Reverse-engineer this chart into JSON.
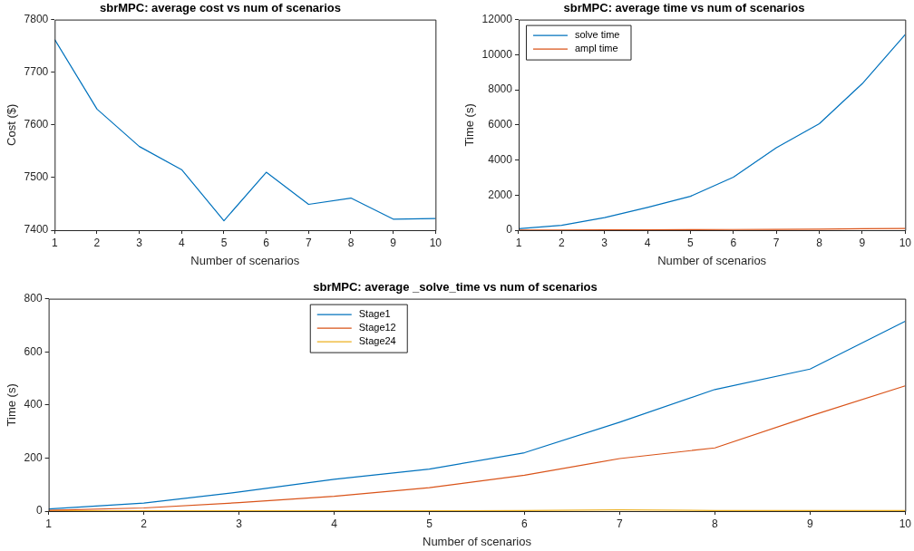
{
  "chart_data": [
    {
      "type": "line",
      "title": "sbrMPC: average cost vs num of scenarios",
      "xlabel": "Number of scenarios",
      "ylabel": "Cost ($)",
      "x": [
        1,
        2,
        3,
        4,
        5,
        6,
        7,
        8,
        9,
        10
      ],
      "xlim": [
        1,
        10
      ],
      "xticks": [
        1,
        2,
        3,
        4,
        5,
        6,
        7,
        8,
        9,
        10
      ],
      "ylim": [
        7400,
        7800
      ],
      "yticks": [
        7400,
        7500,
        7600,
        7700,
        7800
      ],
      "legend": false,
      "series": [
        {
          "color": "#0072bd",
          "values": [
            7762,
            7630,
            7559,
            7515,
            7418,
            7510,
            7449,
            7461,
            7421,
            7422
          ]
        }
      ]
    },
    {
      "type": "line",
      "title": "sbrMPC: average time vs num of scenarios",
      "xlabel": "Number of scenarios",
      "ylabel": "Time (s)",
      "x": [
        1,
        2,
        3,
        4,
        5,
        6,
        7,
        8,
        9,
        10
      ],
      "xlim": [
        1,
        10
      ],
      "xticks": [
        1,
        2,
        3,
        4,
        5,
        6,
        7,
        8,
        9,
        10
      ],
      "ylim": [
        0,
        12000
      ],
      "yticks": [
        0,
        2000,
        4000,
        6000,
        8000,
        10000,
        12000
      ],
      "legend": "top left",
      "series": [
        {
          "name": "solve time",
          "color": "#0072bd",
          "values": [
            80,
            280,
            720,
            1300,
            1930,
            3020,
            4700,
            6070,
            8350,
            11150
          ]
        },
        {
          "name": "ampl time",
          "color": "#d95319",
          "values": [
            10,
            10,
            20,
            20,
            30,
            40,
            50,
            60,
            80,
            100
          ]
        }
      ]
    },
    {
      "type": "line",
      "title": "sbrMPC: average _solve_time vs num of scenarios",
      "xlabel": "Number of scenarios",
      "ylabel": "Time (s)",
      "x": [
        1,
        2,
        3,
        4,
        5,
        6,
        7,
        8,
        9,
        10
      ],
      "xlim": [
        1,
        10
      ],
      "xticks": [
        1,
        2,
        3,
        4,
        5,
        6,
        7,
        8,
        9,
        10
      ],
      "ylim": [
        0,
        800
      ],
      "yticks": [
        0,
        200,
        400,
        600,
        800
      ],
      "legend": "top",
      "series": [
        {
          "name": "Stage1",
          "color": "#0072bd",
          "values": [
            8,
            30,
            72,
            120,
            158,
            220,
            335,
            458,
            535,
            715
          ]
        },
        {
          "name": "Stage12",
          "color": "#d95319",
          "values": [
            3,
            12,
            32,
            56,
            88,
            135,
            198,
            238,
            358,
            472
          ]
        },
        {
          "name": "Stage24",
          "color": "#edb120",
          "values": [
            1,
            1,
            1,
            1,
            1,
            2,
            5,
            2,
            2,
            2
          ]
        }
      ]
    }
  ]
}
